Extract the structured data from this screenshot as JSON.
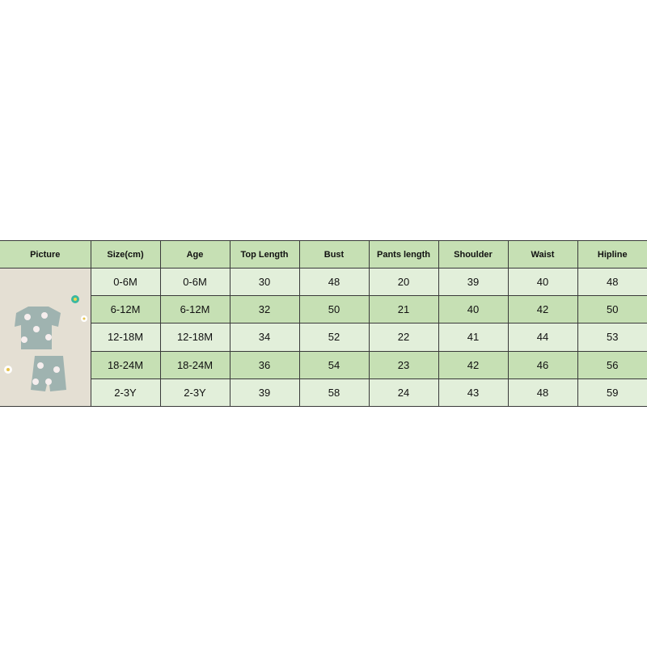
{
  "table": {
    "headers": [
      "Picture",
      "Size(cm)",
      "Age",
      "Top Length",
      "Bust",
      "Pants length",
      "Shoulder",
      "Waist",
      "Hipline"
    ],
    "rows": [
      [
        "0-6M",
        "0-6M",
        "30",
        "48",
        "20",
        "39",
        "40",
        "48"
      ],
      [
        "6-12M",
        "6-12M",
        "32",
        "50",
        "21",
        "40",
        "42",
        "50"
      ],
      [
        "12-18M",
        "12-18M",
        "34",
        "52",
        "22",
        "41",
        "44",
        "53"
      ],
      [
        "18-24M",
        "18-24M",
        "36",
        "54",
        "23",
        "42",
        "46",
        "56"
      ],
      [
        "2-3Y",
        "2-3Y",
        "39",
        "58",
        "24",
        "43",
        "48",
        "59"
      ]
    ]
  },
  "colors": {
    "header": "#c6e0b4",
    "row_light": "#e2efda",
    "row_dark": "#c6e0b4",
    "garment": "#9fb3b0"
  }
}
